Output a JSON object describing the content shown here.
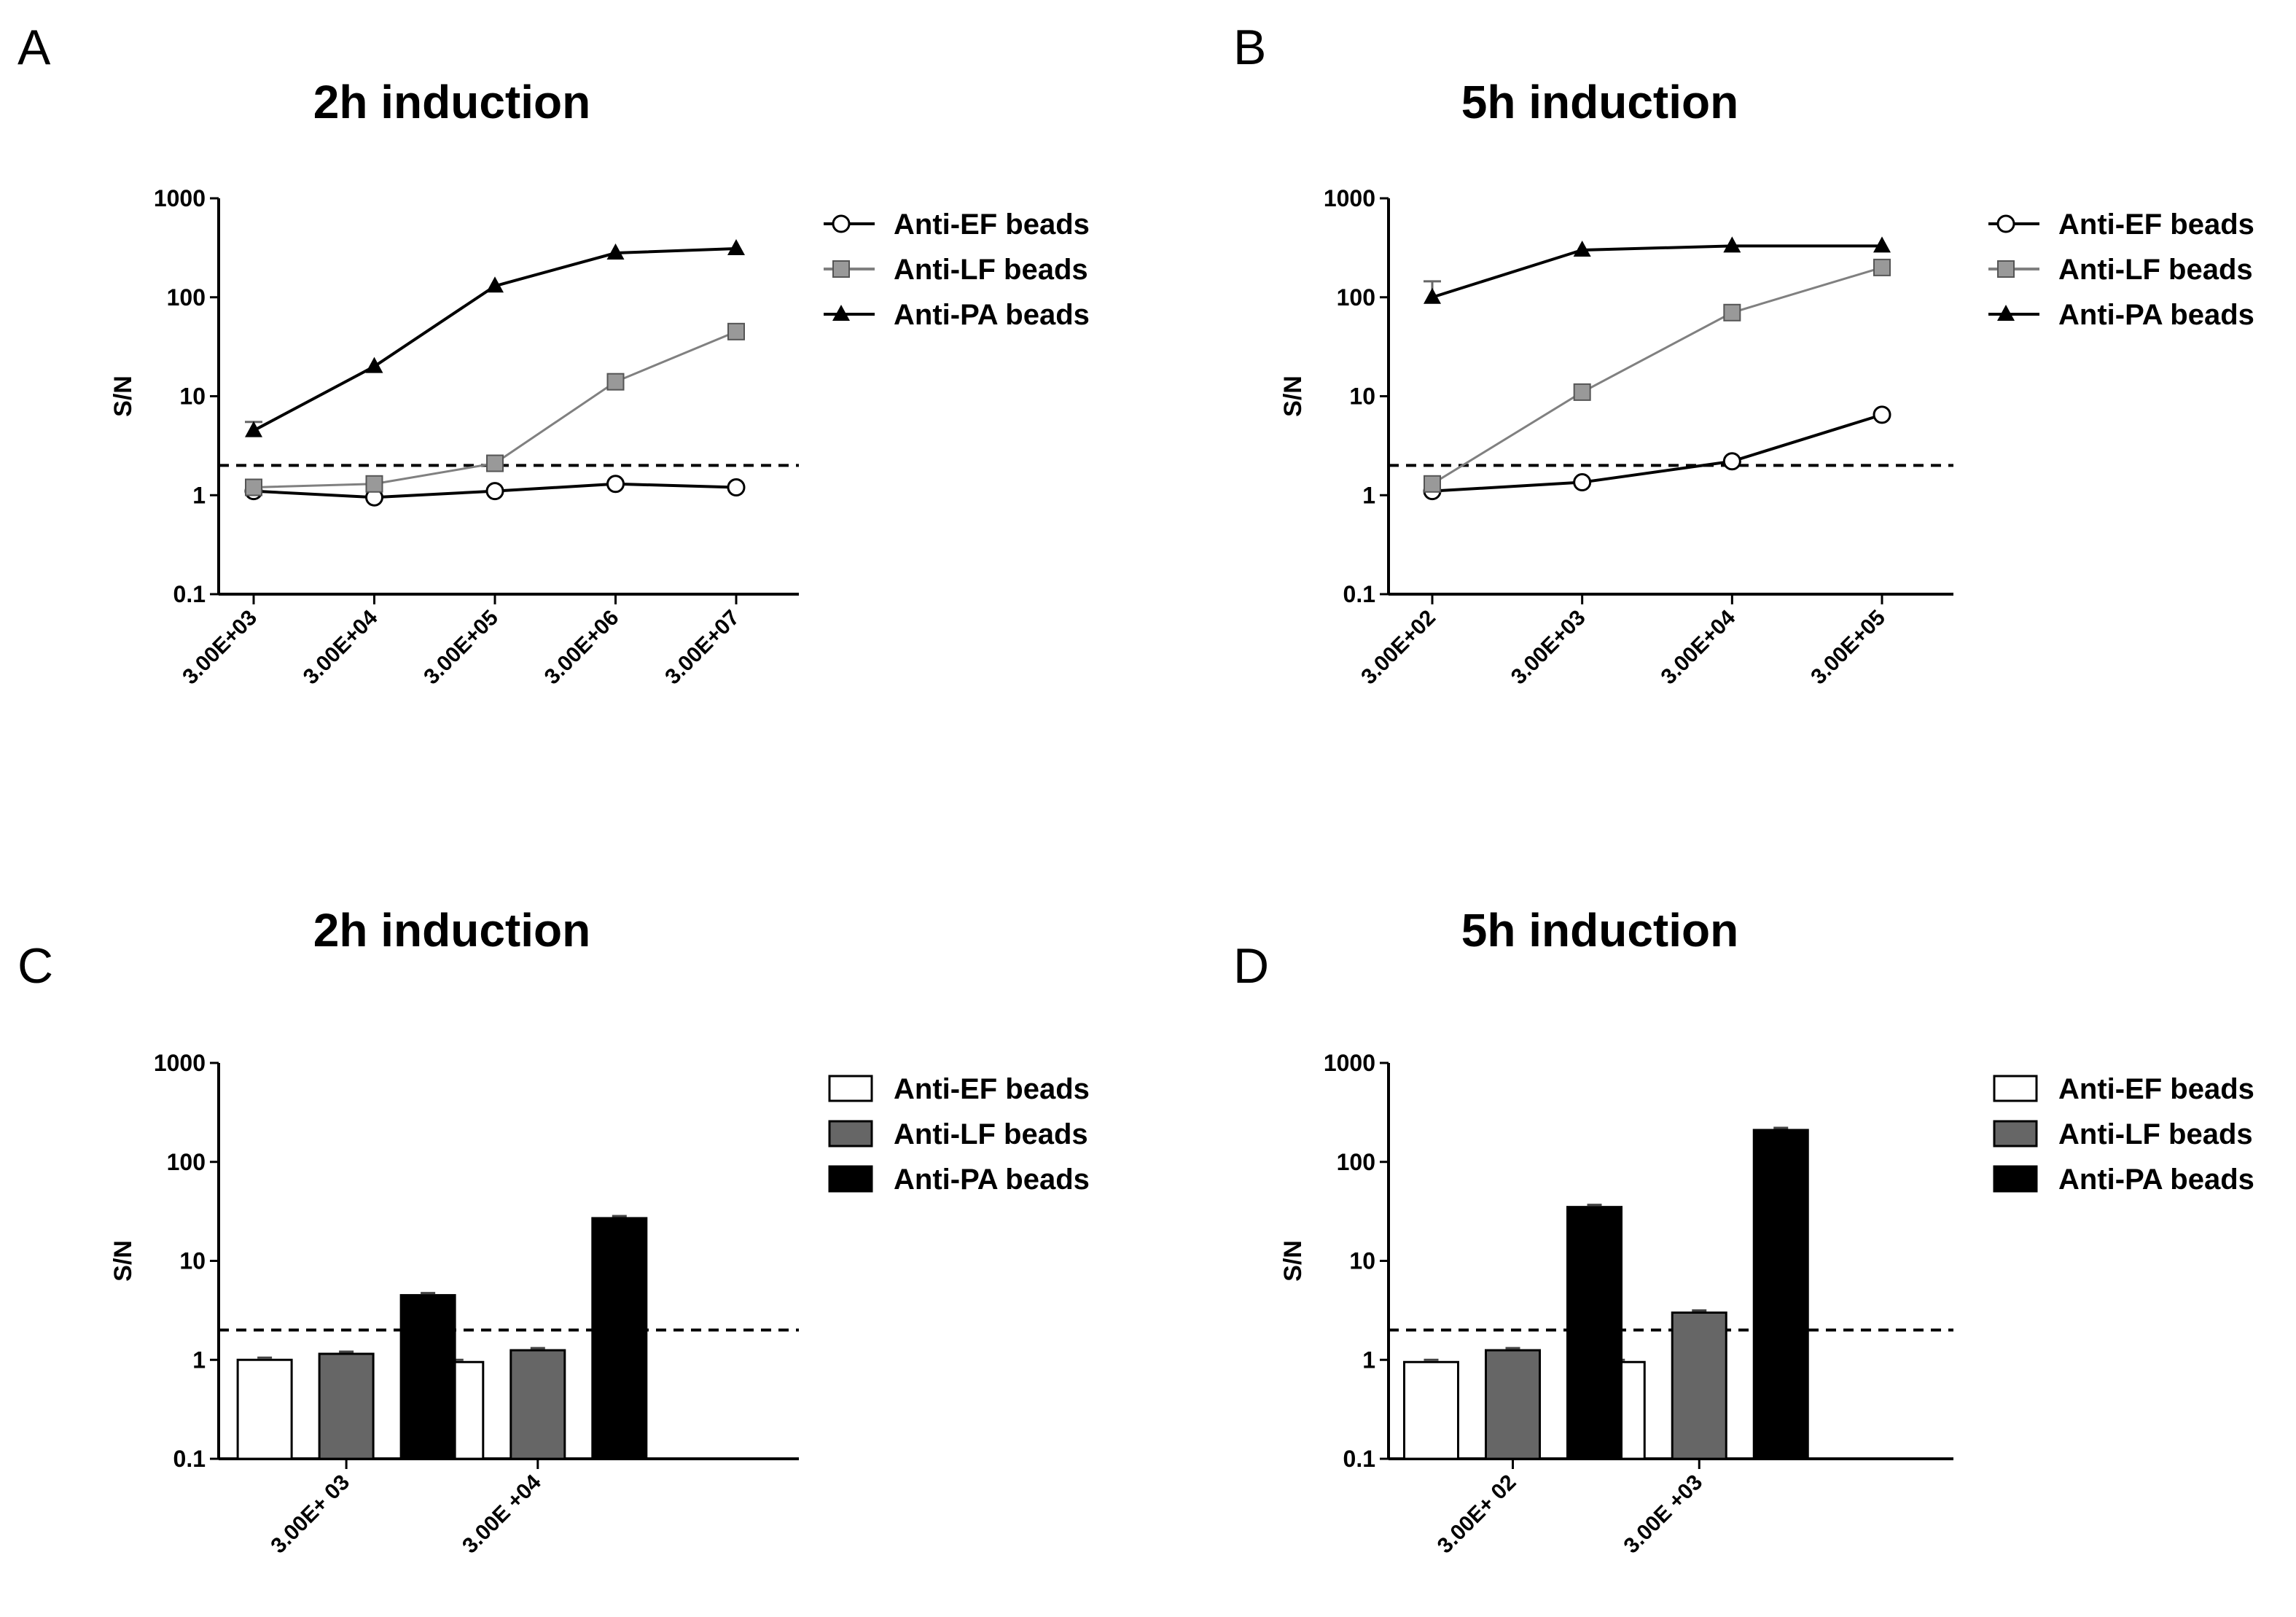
{
  "colors": {
    "ef": "#ffffff",
    "lf_line": "#808080",
    "lf_marker": "#999999",
    "lf_bar": "#666666",
    "pa": "#000000",
    "axis": "#000000"
  },
  "chart_data": [
    {
      "panel": "A",
      "type": "line",
      "title": "2h induction",
      "xlabel": "",
      "ylabel": "S/N",
      "yscale": "log",
      "ylim": [
        0.1,
        1000
      ],
      "yticks": [
        "0.1",
        "1",
        "10",
        "100",
        "1000"
      ],
      "threshold": 2,
      "categories": [
        "3.00E+03",
        "3.00E+04",
        "3.00E+05",
        "3.00E+06",
        "3.00E+07"
      ],
      "series": [
        {
          "key": "ef",
          "name": "Anti-EF beads",
          "marker": "circle",
          "values": [
            1.1,
            0.95,
            1.1,
            1.3,
            1.2
          ]
        },
        {
          "key": "lf",
          "name": "Anti-LF beads",
          "marker": "square",
          "values": [
            1.2,
            1.3,
            2.1,
            14,
            45
          ]
        },
        {
          "key": "pa",
          "name": "Anti-PA beads",
          "marker": "triangle",
          "values": [
            4.5,
            20,
            130,
            280,
            310
          ],
          "errors": [
            1.0,
            0,
            0,
            0,
            0
          ]
        }
      ]
    },
    {
      "panel": "B",
      "type": "line",
      "title": "5h induction",
      "xlabel": "",
      "ylabel": "S/N",
      "yscale": "log",
      "ylim": [
        0.1,
        1000
      ],
      "yticks": [
        "0.1",
        "1",
        "10",
        "100",
        "1000"
      ],
      "threshold": 2,
      "categories": [
        "3.00E+02",
        "3.00E+03",
        "3.00E+04",
        "3.00E+05"
      ],
      "series": [
        {
          "key": "ef",
          "name": "Anti-EF beads",
          "marker": "circle",
          "values": [
            1.1,
            1.35,
            2.2,
            6.5
          ]
        },
        {
          "key": "lf",
          "name": "Anti-LF beads",
          "marker": "square",
          "values": [
            1.3,
            11,
            70,
            200
          ]
        },
        {
          "key": "pa",
          "name": "Anti-PA beads",
          "marker": "triangle",
          "values": [
            100,
            300,
            330,
            330
          ],
          "errors": [
            45,
            0,
            0,
            0
          ]
        }
      ]
    },
    {
      "panel": "C",
      "type": "bar",
      "title": "2h induction",
      "xlabel": "",
      "ylabel": "S/N",
      "yscale": "log",
      "ylim": [
        0.1,
        1000
      ],
      "yticks": [
        "0.1",
        "1",
        "10",
        "100",
        "1000"
      ],
      "threshold": 2,
      "categories": [
        "3.00E+ 03",
        "3.00E +04"
      ],
      "series": [
        {
          "key": "ef",
          "name": "Anti-EF beads",
          "values": [
            1.0,
            0.95
          ]
        },
        {
          "key": "lf",
          "name": "Anti-LF beads",
          "values": [
            1.15,
            1.25
          ]
        },
        {
          "key": "pa",
          "name": "Anti-PA beads",
          "values": [
            4.5,
            27
          ]
        }
      ]
    },
    {
      "panel": "D",
      "type": "bar",
      "title": "5h induction",
      "xlabel": "",
      "ylabel": "S/N",
      "yscale": "log",
      "ylim": [
        0.1,
        1000
      ],
      "yticks": [
        "0.1",
        "1",
        "10",
        "100",
        "1000"
      ],
      "threshold": 2,
      "categories": [
        "3.00E+ 02",
        "3.00E +03"
      ],
      "series": [
        {
          "key": "ef",
          "name": "Anti-EF beads",
          "values": [
            0.95,
            0.95
          ]
        },
        {
          "key": "lf",
          "name": "Anti-LF beads",
          "values": [
            1.25,
            3.0
          ]
        },
        {
          "key": "pa",
          "name": "Anti-PA beads",
          "values": [
            35,
            210
          ]
        }
      ]
    }
  ]
}
